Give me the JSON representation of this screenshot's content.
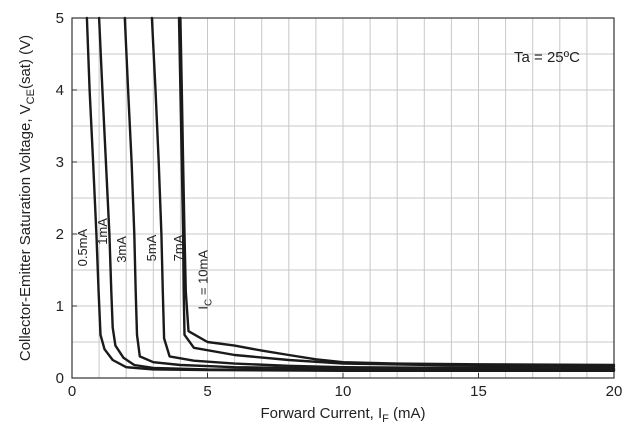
{
  "chart_data": {
    "type": "line",
    "title": "",
    "xlabel": {
      "text": "Forward Current, I",
      "sub": "F",
      "suffix": " (mA)"
    },
    "ylabel": {
      "text": "Collector-Emitter Saturation Voltage, V",
      "sub": "CE",
      "suffix": "(sat) (V)"
    },
    "xlim": [
      0,
      20
    ],
    "ylim": [
      0,
      5
    ],
    "xticks": [
      0,
      5,
      10,
      15,
      20
    ],
    "yticks": [
      0,
      1,
      2,
      3,
      4,
      5
    ],
    "grid": true,
    "annotation": "Ta = 25ºC",
    "series": [
      {
        "name": "0.5mA",
        "label_parts": {
          "prefix": "",
          "sub": "",
          "suffix": "0.5mA"
        },
        "label_at": [
          0.55,
          1.55
        ],
        "points": [
          [
            0.55,
            5.0
          ],
          [
            0.65,
            4.0
          ],
          [
            0.78,
            3.0
          ],
          [
            0.9,
            2.0
          ],
          [
            0.98,
            1.2
          ],
          [
            1.05,
            0.6
          ],
          [
            1.2,
            0.4
          ],
          [
            1.5,
            0.25
          ],
          [
            2.0,
            0.15
          ],
          [
            3.0,
            0.12
          ],
          [
            5.0,
            0.11
          ],
          [
            10.0,
            0.1
          ],
          [
            20.0,
            0.1
          ]
        ]
      },
      {
        "name": "1mA",
        "label_parts": {
          "prefix": "",
          "sub": "",
          "suffix": "1mA"
        },
        "label_at": [
          1.3,
          1.85
        ],
        "points": [
          [
            1.0,
            5.0
          ],
          [
            1.12,
            4.0
          ],
          [
            1.25,
            3.0
          ],
          [
            1.38,
            2.0
          ],
          [
            1.45,
            1.2
          ],
          [
            1.5,
            0.7
          ],
          [
            1.6,
            0.45
          ],
          [
            1.9,
            0.28
          ],
          [
            2.3,
            0.18
          ],
          [
            3.0,
            0.14
          ],
          [
            5.0,
            0.12
          ],
          [
            10.0,
            0.11
          ],
          [
            20.0,
            0.11
          ]
        ]
      },
      {
        "name": "3mA",
        "label_parts": {
          "prefix": "",
          "sub": "",
          "suffix": "3mA"
        },
        "label_at": [
          2.0,
          1.6
        ],
        "points": [
          [
            1.95,
            5.0
          ],
          [
            2.07,
            4.0
          ],
          [
            2.2,
            3.0
          ],
          [
            2.3,
            2.0
          ],
          [
            2.35,
            1.2
          ],
          [
            2.4,
            0.6
          ],
          [
            2.5,
            0.3
          ],
          [
            3.0,
            0.22
          ],
          [
            4.0,
            0.18
          ],
          [
            6.0,
            0.15
          ],
          [
            10.0,
            0.13
          ],
          [
            20.0,
            0.12
          ]
        ]
      },
      {
        "name": "5mA",
        "label_parts": {
          "prefix": "",
          "sub": "",
          "suffix": "5mA"
        },
        "label_at": [
          3.1,
          1.62
        ],
        "points": [
          [
            2.95,
            5.0
          ],
          [
            3.08,
            4.0
          ],
          [
            3.2,
            3.0
          ],
          [
            3.3,
            2.0
          ],
          [
            3.35,
            1.2
          ],
          [
            3.4,
            0.55
          ],
          [
            3.6,
            0.3
          ],
          [
            4.5,
            0.24
          ],
          [
            6.0,
            0.2
          ],
          [
            8.0,
            0.17
          ],
          [
            10.0,
            0.15
          ],
          [
            15.0,
            0.14
          ],
          [
            20.0,
            0.13
          ]
        ]
      },
      {
        "name": "7mA",
        "label_parts": {
          "prefix": "",
          "sub": "",
          "suffix": "7mA"
        },
        "label_at": [
          4.1,
          1.62
        ],
        "points": [
          [
            3.95,
            5.0
          ],
          [
            4.0,
            4.0
          ],
          [
            4.05,
            3.0
          ],
          [
            4.1,
            2.0
          ],
          [
            4.12,
            1.2
          ],
          [
            4.15,
            0.6
          ],
          [
            4.5,
            0.42
          ],
          [
            6.0,
            0.32
          ],
          [
            8.0,
            0.25
          ],
          [
            10.0,
            0.2
          ],
          [
            15.0,
            0.17
          ],
          [
            20.0,
            0.16
          ]
        ]
      },
      {
        "name": "IC = 10mA",
        "label_parts": {
          "prefix": "I",
          "sub": "C",
          "suffix": " = 10mA"
        },
        "label_at": [
          5.0,
          0.95
        ],
        "points": [
          [
            4.0,
            5.0
          ],
          [
            4.05,
            4.0
          ],
          [
            4.1,
            3.0
          ],
          [
            4.15,
            2.0
          ],
          [
            4.2,
            1.2
          ],
          [
            4.3,
            0.65
          ],
          [
            5.0,
            0.5
          ],
          [
            6.0,
            0.45
          ],
          [
            7.0,
            0.38
          ],
          [
            8.0,
            0.32
          ],
          [
            9.0,
            0.26
          ],
          [
            10.0,
            0.22
          ],
          [
            12.0,
            0.2
          ],
          [
            15.0,
            0.19
          ],
          [
            20.0,
            0.18
          ]
        ]
      }
    ]
  }
}
